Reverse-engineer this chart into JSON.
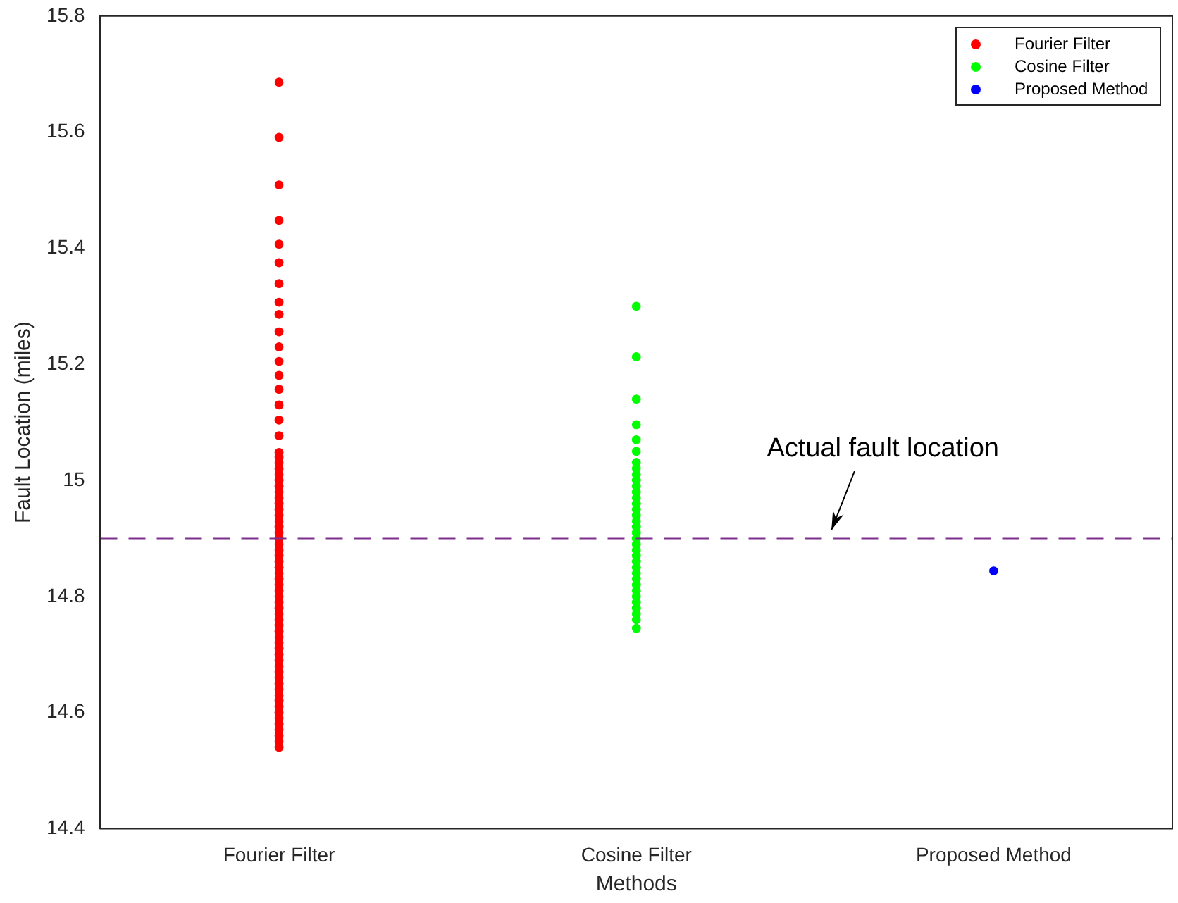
{
  "chart_data": {
    "type": "scatter",
    "xlabel": "Methods",
    "ylabel": "Fault Location (miles)",
    "categories": [
      "Fourier Filter",
      "Cosine Filter",
      "Proposed Method"
    ],
    "series": [
      {
        "name": "Fourier Filter",
        "color": "#ff0000",
        "x": [
          "Fourier Filter",
          "Fourier Filter",
          "Fourier Filter",
          "Fourier Filter",
          "Fourier Filter",
          "Fourier Filter",
          "Fourier Filter",
          "Fourier Filter",
          "Fourier Filter",
          "Fourier Filter",
          "Fourier Filter",
          "Fourier Filter",
          "Fourier Filter",
          "Fourier Filter",
          "Fourier Filter",
          "Fourier Filter",
          "Fourier Filter",
          "Fourier Filter",
          "Fourier Filter",
          "Fourier Filter",
          "Fourier Filter",
          "Fourier Filter",
          "Fourier Filter",
          "Fourier Filter",
          "Fourier Filter",
          "Fourier Filter",
          "Fourier Filter",
          "Fourier Filter",
          "Fourier Filter",
          "Fourier Filter",
          "Fourier Filter",
          "Fourier Filter",
          "Fourier Filter",
          "Fourier Filter",
          "Fourier Filter",
          "Fourier Filter",
          "Fourier Filter",
          "Fourier Filter",
          "Fourier Filter",
          "Fourier Filter",
          "Fourier Filter",
          "Fourier Filter",
          "Fourier Filter",
          "Fourier Filter",
          "Fourier Filter",
          "Fourier Filter",
          "Fourier Filter",
          "Fourier Filter",
          "Fourier Filter",
          "Fourier Filter",
          "Fourier Filter",
          "Fourier Filter",
          "Fourier Filter",
          "Fourier Filter",
          "Fourier Filter",
          "Fourier Filter",
          "Fourier Filter",
          "Fourier Filter",
          "Fourier Filter",
          "Fourier Filter",
          "Fourier Filter",
          "Fourier Filter",
          "Fourier Filter",
          "Fourier Filter",
          "Fourier Filter",
          "Fourier Filter",
          "Fourier Filter",
          "Fourier Filter",
          "Fourier Filter"
        ],
        "values": [
          15.686,
          15.591,
          15.509,
          15.448,
          15.407,
          15.375,
          15.339,
          15.307,
          15.286,
          15.256,
          15.23,
          15.205,
          15.181,
          15.157,
          15.13,
          15.104,
          15.077,
          15.048,
          15.04,
          15.03,
          15.02,
          15.01,
          15.0,
          14.99,
          14.98,
          14.97,
          14.96,
          14.95,
          14.94,
          14.93,
          14.92,
          14.91,
          14.9,
          14.89,
          14.88,
          14.87,
          14.86,
          14.85,
          14.84,
          14.83,
          14.82,
          14.81,
          14.8,
          14.79,
          14.78,
          14.77,
          14.76,
          14.75,
          14.74,
          14.73,
          14.72,
          14.71,
          14.7,
          14.69,
          14.68,
          14.67,
          14.66,
          14.65,
          14.64,
          14.63,
          14.62,
          14.61,
          14.6,
          14.59,
          14.58,
          14.57,
          14.56,
          14.55,
          14.54
        ]
      },
      {
        "name": "Cosine Filter",
        "color": "#00ff00",
        "x": [
          "Cosine Filter",
          "Cosine Filter",
          "Cosine Filter",
          "Cosine Filter",
          "Cosine Filter",
          "Cosine Filter",
          "Cosine Filter",
          "Cosine Filter",
          "Cosine Filter",
          "Cosine Filter",
          "Cosine Filter",
          "Cosine Filter",
          "Cosine Filter",
          "Cosine Filter",
          "Cosine Filter",
          "Cosine Filter",
          "Cosine Filter",
          "Cosine Filter",
          "Cosine Filter",
          "Cosine Filter",
          "Cosine Filter",
          "Cosine Filter",
          "Cosine Filter",
          "Cosine Filter",
          "Cosine Filter",
          "Cosine Filter",
          "Cosine Filter",
          "Cosine Filter",
          "Cosine Filter",
          "Cosine Filter",
          "Cosine Filter",
          "Cosine Filter",
          "Cosine Filter",
          "Cosine Filter",
          "Cosine Filter"
        ],
        "values": [
          15.3,
          15.213,
          15.14,
          15.096,
          15.07,
          15.05,
          15.031,
          15.021,
          15.01,
          15.0,
          14.99,
          14.98,
          14.97,
          14.96,
          14.95,
          14.94,
          14.93,
          14.92,
          14.91,
          14.9,
          14.89,
          14.88,
          14.87,
          14.86,
          14.85,
          14.84,
          14.83,
          14.82,
          14.81,
          14.8,
          14.79,
          14.78,
          14.77,
          14.76,
          14.745
        ]
      },
      {
        "name": "Proposed Method",
        "color": "#0000ff",
        "x": [
          "Proposed Method"
        ],
        "values": [
          14.844
        ]
      }
    ],
    "ylim": [
      14.4,
      15.8
    ],
    "yticks": [
      14.4,
      14.6,
      14.8,
      15,
      15.2,
      15.4,
      15.6,
      15.8
    ],
    "ref_lines": [
      {
        "axis": "y",
        "value": 14.9,
        "label": "Actual fault location",
        "color": "#7e2f8e",
        "line_style": "dashed"
      }
    ],
    "legend": "top right",
    "marker": "circle",
    "grid": false
  }
}
